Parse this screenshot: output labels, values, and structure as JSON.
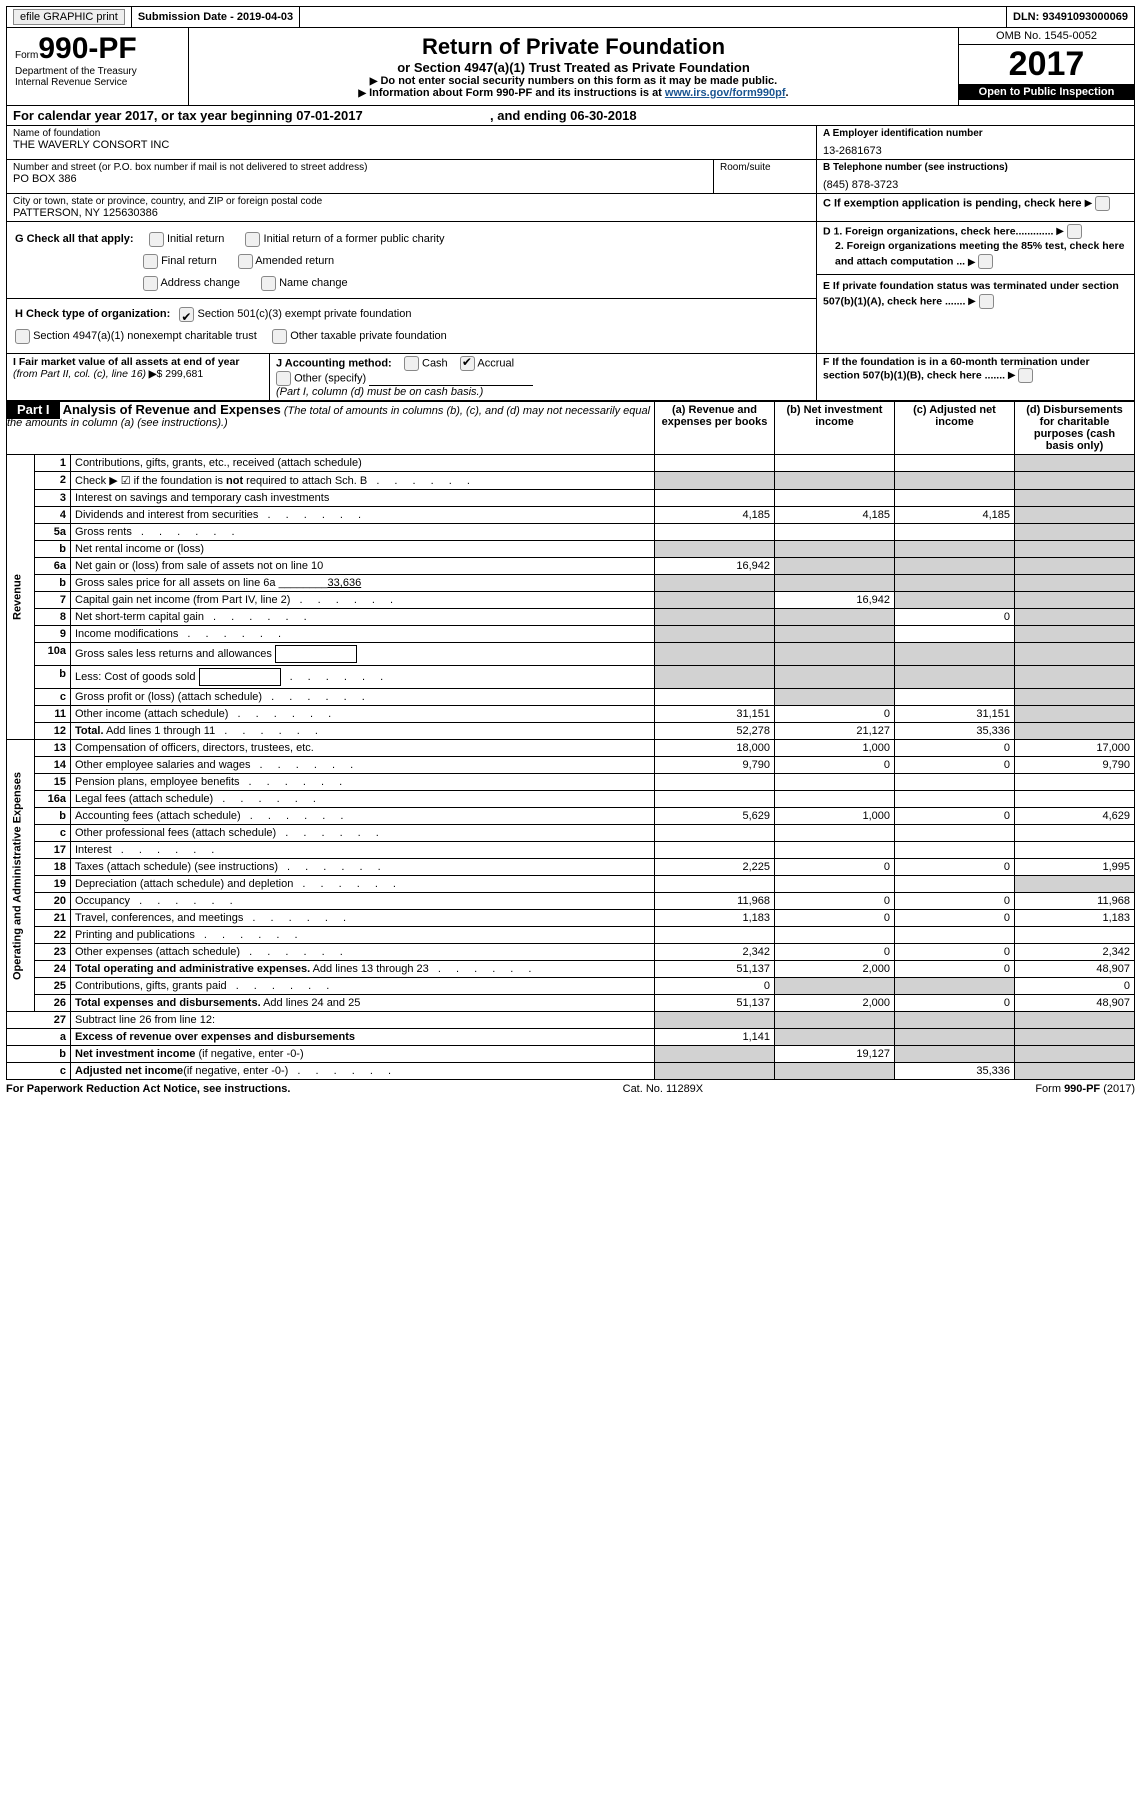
{
  "top_bar": {
    "efile_label": "efile GRAPHIC print",
    "submission_label": "Submission Date - 2019-04-03",
    "dln_label": "DLN: 93491093000069"
  },
  "header": {
    "form_label": "Form",
    "form_number": "990-PF",
    "dept": "Department of the Treasury",
    "irs": "Internal Revenue Service",
    "title": "Return of Private Foundation",
    "subtitle": "or Section 4947(a)(1) Trust Treated as Private Foundation",
    "note1": "Do not enter social security numbers on this form as it may be made public.",
    "note2_pre": "Information about Form 990-PF and its instructions is at ",
    "note2_link": "www.irs.gov/form990pf",
    "omb": "OMB No. 1545-0052",
    "year": "2017",
    "open_public": "Open to Public Inspection"
  },
  "period": {
    "line": "For calendar year 2017, or tax year beginning 07-01-2017",
    "and_ending": ", and ending 06-30-2018"
  },
  "entity": {
    "name_label": "Name of foundation",
    "name": "THE WAVERLY CONSORT INC",
    "addr_label": "Number and street (or P.O. box number if mail is not delivered to street address)",
    "addr": "PO BOX 386",
    "room_label": "Room/suite",
    "city_label": "City or town, state or province, country, and ZIP or foreign postal code",
    "city": "PATTERSON, NY  125630386",
    "ein_label": "A Employer identification number",
    "ein": "13-2681673",
    "phone_label": "B Telephone number (see instructions)",
    "phone": "(845) 878-3723",
    "c_label": "C If exemption application is pending, check here",
    "d1": "D 1. Foreign organizations, check here.............",
    "d2": "2. Foreign organizations meeting the 85% test, check here and attach computation ...",
    "e": "E  If private foundation status was terminated under section 507(b)(1)(A), check here .......",
    "f": "F  If the foundation is in a 60-month termination under section 507(b)(1)(B), check here .......",
    "g_label": "G Check all that apply:",
    "g_opts": [
      "Initial return",
      "Initial return of a former public charity",
      "Final return",
      "Amended return",
      "Address change",
      "Name change"
    ],
    "h_label": "H Check type of organization:",
    "h1": "Section 501(c)(3) exempt private foundation",
    "h2": "Section 4947(a)(1) nonexempt charitable trust",
    "h3": "Other taxable private foundation",
    "i_label": "I Fair market value of all assets at end of year ",
    "i_from": "(from Part II, col. (c), line 16)",
    "i_value": "$  299,681",
    "j_label": "J Accounting method:",
    "j_cash": "Cash",
    "j_accrual": "Accrual",
    "j_other": "Other (specify)",
    "j_note": "(Part I, column (d) must be on cash basis.)"
  },
  "part1": {
    "label": "Part I",
    "title": "Analysis of Revenue and Expenses",
    "note": "(The total of amounts in columns (b), (c), and (d) may not necessarily equal the amounts in column (a) (see instructions).)",
    "col_a": "(a)   Revenue and expenses per books",
    "col_b": "(b)  Net investment income",
    "col_c": "(c)  Adjusted net income",
    "col_d": "(d)  Disbursements for charitable purposes (cash basis only)",
    "vheader_rev": "Revenue",
    "vheader_exp": "Operating and Administrative Expenses"
  },
  "rows": [
    {
      "n": "1",
      "d": "Contributions, gifts, grants, etc., received (attach schedule)",
      "a": "",
      "b": "",
      "c": "",
      "dcol": "",
      "grey": [
        "d"
      ]
    },
    {
      "n": "2",
      "d": "Check ▶ ☑ if the foundation is <b>not</b> required to attach Sch. B",
      "dots": true,
      "a": "",
      "b": "",
      "c": "",
      "dcol": "",
      "grey": [
        "a",
        "b",
        "c",
        "d"
      ]
    },
    {
      "n": "3",
      "d": "Interest on savings and temporary cash investments",
      "a": "",
      "b": "",
      "c": "",
      "dcol": "",
      "grey": [
        "d"
      ]
    },
    {
      "n": "4",
      "d": "Dividends and interest from securities",
      "dots": true,
      "a": "4,185",
      "b": "4,185",
      "c": "4,185",
      "dcol": "",
      "grey": [
        "d"
      ]
    },
    {
      "n": "5a",
      "d": "Gross rents",
      "dots": true,
      "a": "",
      "b": "",
      "c": "",
      "dcol": "",
      "grey": [
        "d"
      ]
    },
    {
      "n": "b",
      "d": "Net rental income or (loss)",
      "a": "",
      "b": "",
      "c": "",
      "dcol": "",
      "grey": [
        "a",
        "b",
        "c",
        "d"
      ]
    },
    {
      "n": "6a",
      "d": "Net gain or (loss) from sale of assets not on line 10",
      "a": "16,942",
      "b": "",
      "c": "",
      "dcol": "",
      "grey": [
        "b",
        "c",
        "d"
      ]
    },
    {
      "n": "b",
      "d": "Gross sales price for all assets on line 6a ________<u>33,636</u>",
      "a": "",
      "b": "",
      "c": "",
      "dcol": "",
      "grey": [
        "a",
        "b",
        "c",
        "d"
      ]
    },
    {
      "n": "7",
      "d": "Capital gain net income (from Part IV, line 2)",
      "dots": true,
      "a": "",
      "b": "16,942",
      "c": "",
      "dcol": "",
      "grey": [
        "a",
        "c",
        "d"
      ]
    },
    {
      "n": "8",
      "d": "Net short-term capital gain",
      "dots": true,
      "a": "",
      "b": "",
      "c": "0",
      "dcol": "",
      "grey": [
        "a",
        "b",
        "d"
      ]
    },
    {
      "n": "9",
      "d": "Income modifications",
      "dots": true,
      "a": "",
      "b": "",
      "c": "",
      "dcol": "",
      "grey": [
        "a",
        "b",
        "d"
      ]
    },
    {
      "n": "10a",
      "d": "Gross sales less returns and allowances",
      "box": true,
      "a": "",
      "b": "",
      "c": "",
      "dcol": "",
      "grey": [
        "a",
        "b",
        "c",
        "d"
      ]
    },
    {
      "n": "b",
      "d": "Less: Cost of goods sold",
      "dots": true,
      "box": true,
      "a": "",
      "b": "",
      "c": "",
      "dcol": "",
      "grey": [
        "a",
        "b",
        "c",
        "d"
      ]
    },
    {
      "n": "c",
      "d": "Gross profit or (loss) (attach schedule)",
      "dots": true,
      "a": "",
      "b": "",
      "c": "",
      "dcol": "",
      "grey": [
        "b",
        "d"
      ]
    },
    {
      "n": "11",
      "d": "Other income (attach schedule)",
      "dots": true,
      "a": "31,151",
      "b": "0",
      "c": "31,151",
      "dcol": "",
      "grey": [
        "d"
      ]
    },
    {
      "n": "12",
      "d": "<b>Total.</b> Add lines 1 through 11",
      "dots": true,
      "a": "52,278",
      "b": "21,127",
      "c": "35,336",
      "dcol": "",
      "grey": [
        "d"
      ]
    }
  ],
  "exp_rows": [
    {
      "n": "13",
      "d": "Compensation of officers, directors, trustees, etc.",
      "a": "18,000",
      "b": "1,000",
      "c": "0",
      "dcol": "17,000"
    },
    {
      "n": "14",
      "d": "Other employee salaries and wages",
      "dots": true,
      "a": "9,790",
      "b": "0",
      "c": "0",
      "dcol": "9,790"
    },
    {
      "n": "15",
      "d": "Pension plans, employee benefits",
      "dots": true,
      "a": "",
      "b": "",
      "c": "",
      "dcol": ""
    },
    {
      "n": "16a",
      "d": "Legal fees (attach schedule)",
      "dots": true,
      "a": "",
      "b": "",
      "c": "",
      "dcol": ""
    },
    {
      "n": "b",
      "d": "Accounting fees (attach schedule)",
      "dots": true,
      "a": "5,629",
      "b": "1,000",
      "c": "0",
      "dcol": "4,629"
    },
    {
      "n": "c",
      "d": "Other professional fees (attach schedule)",
      "dots": true,
      "a": "",
      "b": "",
      "c": "",
      "dcol": ""
    },
    {
      "n": "17",
      "d": "Interest",
      "dots": true,
      "a": "",
      "b": "",
      "c": "",
      "dcol": ""
    },
    {
      "n": "18",
      "d": "Taxes (attach schedule) (see instructions)",
      "dots": true,
      "a": "2,225",
      "b": "0",
      "c": "0",
      "dcol": "1,995"
    },
    {
      "n": "19",
      "d": "Depreciation (attach schedule) and depletion",
      "dots": true,
      "a": "",
      "b": "",
      "c": "",
      "dcol": "",
      "grey": [
        "d"
      ]
    },
    {
      "n": "20",
      "d": "Occupancy",
      "dots": true,
      "a": "11,968",
      "b": "0",
      "c": "0",
      "dcol": "11,968"
    },
    {
      "n": "21",
      "d": "Travel, conferences, and meetings",
      "dots": true,
      "a": "1,183",
      "b": "0",
      "c": "0",
      "dcol": "1,183"
    },
    {
      "n": "22",
      "d": "Printing and publications",
      "dots": true,
      "a": "",
      "b": "",
      "c": "",
      "dcol": ""
    },
    {
      "n": "23",
      "d": "Other expenses (attach schedule)",
      "dots": true,
      "a": "2,342",
      "b": "0",
      "c": "0",
      "dcol": "2,342"
    },
    {
      "n": "24",
      "d": "<b>Total operating and administrative expenses.</b> Add lines 13 through 23",
      "dots": true,
      "a": "51,137",
      "b": "2,000",
      "c": "0",
      "dcol": "48,907"
    },
    {
      "n": "25",
      "d": "Contributions, gifts, grants paid",
      "dots": true,
      "a": "0",
      "b": "",
      "c": "",
      "dcol": "0",
      "grey": [
        "b",
        "c"
      ]
    },
    {
      "n": "26",
      "d": "<b>Total expenses and disbursements.</b> Add lines 24 and 25",
      "a": "51,137",
      "b": "2,000",
      "c": "0",
      "dcol": "48,907"
    }
  ],
  "sub_rows": [
    {
      "n": "27",
      "d": "Subtract line 26 from line 12:",
      "a": "",
      "b": "",
      "c": "",
      "dcol": "",
      "grey": [
        "a",
        "b",
        "c",
        "d"
      ]
    },
    {
      "n": "a",
      "d": "<b>Excess of revenue over expenses and disbursements</b>",
      "a": "1,141",
      "b": "",
      "c": "",
      "dcol": "",
      "grey": [
        "b",
        "c",
        "d"
      ]
    },
    {
      "n": "b",
      "d": "<b>Net investment income</b> (if negative, enter -0-)",
      "a": "",
      "b": "19,127",
      "c": "",
      "dcol": "",
      "grey": [
        "a",
        "c",
        "d"
      ]
    },
    {
      "n": "c",
      "d": "<b>Adjusted net income</b>(if negative, enter -0-)",
      "dots": true,
      "a": "",
      "b": "",
      "c": "35,336",
      "dcol": "",
      "grey": [
        "a",
        "b",
        "d"
      ]
    }
  ],
  "footer": {
    "left": "For Paperwork Reduction Act Notice, see instructions.",
    "mid": "Cat. No. 11289X",
    "right": "Form 990-PF (2017)"
  }
}
